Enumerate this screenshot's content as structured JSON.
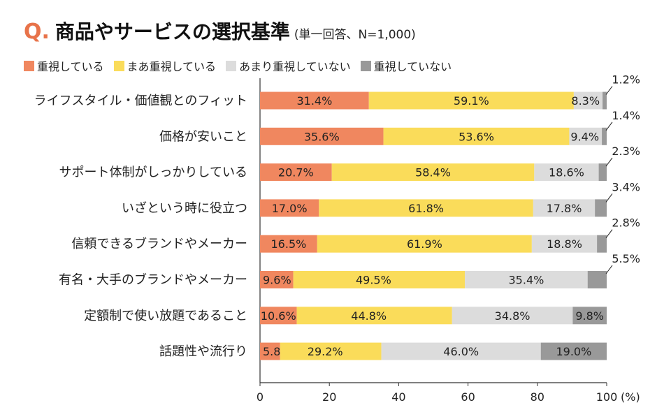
{
  "chart_data": {
    "type": "bar",
    "orientation": "horizontal",
    "stacked": true,
    "title": {
      "prefix": "Q.",
      "main": "商品やサービスの選択基準",
      "subtitle": "(単一回答、N=1,000)"
    },
    "categories": [
      "ライフスタイル・価値観とのフィット",
      "価格が安いこと",
      "サポート体制がしっかりしている",
      "いざという時に役立つ",
      "信頼できるブランドやメーカー",
      "有名・大手のブランドやメーカー",
      "定額制で使い放題であること",
      "話題性や流行り"
    ],
    "series": [
      {
        "name": "重視している",
        "color": "#f0875f",
        "values": [
          31.4,
          35.6,
          20.7,
          17.0,
          16.5,
          9.6,
          10.6,
          5.8
        ]
      },
      {
        "name": "まあ重視している",
        "color": "#fadc5a",
        "values": [
          59.1,
          53.6,
          58.4,
          61.8,
          61.9,
          49.5,
          44.8,
          29.2
        ]
      },
      {
        "name": "あまり重視していない",
        "color": "#dcdcdc",
        "values": [
          8.3,
          9.4,
          18.6,
          17.8,
          18.8,
          35.4,
          34.8,
          46.0
        ]
      },
      {
        "name": "重視していない",
        "color": "#999999",
        "values": [
          1.2,
          1.4,
          2.3,
          3.4,
          2.8,
          5.5,
          9.8,
          19.0
        ]
      }
    ],
    "value_labels": [
      [
        "31.4%",
        "59.1%",
        "8.3%",
        "1.2%"
      ],
      [
        "35.6%",
        "53.6%",
        "9.4%",
        "1.4%"
      ],
      [
        "20.7%",
        "58.4%",
        "18.6%",
        "2.3%"
      ],
      [
        "17.0%",
        "61.8%",
        "17.8%",
        "3.4%"
      ],
      [
        "16.5%",
        "61.9%",
        "18.8%",
        "2.8%"
      ],
      [
        "9.6%",
        "49.5%",
        "35.4%",
        "5.5%"
      ],
      [
        "10.6%",
        "44.8%",
        "34.8%",
        "9.8%"
      ],
      [
        "5.8%",
        "29.2%",
        "46.0%",
        "19.0%"
      ]
    ],
    "xlim": [
      0,
      100
    ],
    "x_ticks": [
      "0",
      "20",
      "40",
      "60",
      "80",
      "100"
    ],
    "x_unit": "(%)",
    "legend_position": "top-left",
    "grid": false
  }
}
